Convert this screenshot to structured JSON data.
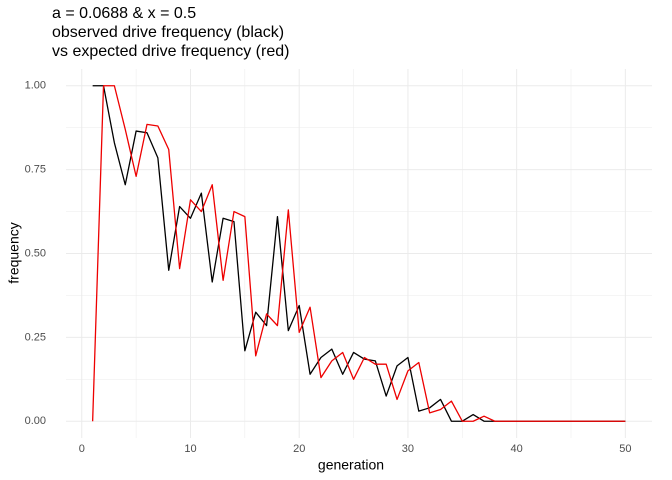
{
  "chart_data": {
    "type": "line",
    "title": [
      "a = 0.0688 & x = 0.5",
      "observed drive frequency (black)",
      "vs expected drive frequency (red)"
    ],
    "x_label": "generation",
    "y_label": "frequency",
    "x": [
      1,
      2,
      3,
      4,
      5,
      6,
      7,
      8,
      9,
      10,
      11,
      12,
      13,
      14,
      15,
      16,
      17,
      18,
      19,
      20,
      21,
      22,
      23,
      24,
      25,
      26,
      27,
      28,
      29,
      30,
      31,
      32,
      33,
      34,
      35,
      36,
      37,
      38,
      39,
      40,
      41,
      42,
      43,
      44,
      45,
      46,
      47,
      48,
      49,
      50
    ],
    "series": [
      {
        "color": "#000000",
        "values": [
          1.0,
          1.0,
          0.83,
          0.705,
          0.865,
          0.86,
          0.785,
          0.45,
          0.64,
          0.605,
          0.68,
          0.415,
          0.605,
          0.595,
          0.21,
          0.325,
          0.285,
          0.61,
          0.27,
          0.345,
          0.14,
          0.19,
          0.215,
          0.14,
          0.205,
          0.185,
          0.18,
          0.075,
          0.165,
          0.19,
          0.03,
          0.04,
          0.065,
          0,
          0,
          0.02,
          0,
          0,
          0,
          0,
          0,
          0,
          0,
          0,
          0,
          0,
          0,
          0,
          0,
          0
        ]
      },
      {
        "color": "#ee0000",
        "values": [
          0,
          1.0,
          1.0,
          0.87,
          0.73,
          0.885,
          0.88,
          0.81,
          0.455,
          0.66,
          0.625,
          0.705,
          0.42,
          0.625,
          0.61,
          0.195,
          0.32,
          0.285,
          0.63,
          0.265,
          0.34,
          0.13,
          0.18,
          0.205,
          0.125,
          0.19,
          0.17,
          0.17,
          0.065,
          0.15,
          0.175,
          0.025,
          0.035,
          0.06,
          0,
          0,
          0.015,
          0,
          0,
          0,
          0,
          0,
          0,
          0,
          0,
          0,
          0,
          0,
          0,
          0
        ]
      }
    ],
    "xlim": [
      -1.45,
      52.45
    ],
    "xticks": [
      0,
      10,
      20,
      30,
      40,
      50
    ],
    "ylim": [
      -0.05,
      1.05
    ],
    "yticks": [
      {
        "value": 0,
        "label": "0.00"
      },
      0.25,
      {
        "value": 0.5,
        "label": "0.50"
      },
      0.75,
      {
        "value": 1,
        "label": "1.00"
      }
    ],
    "grid": true
  }
}
